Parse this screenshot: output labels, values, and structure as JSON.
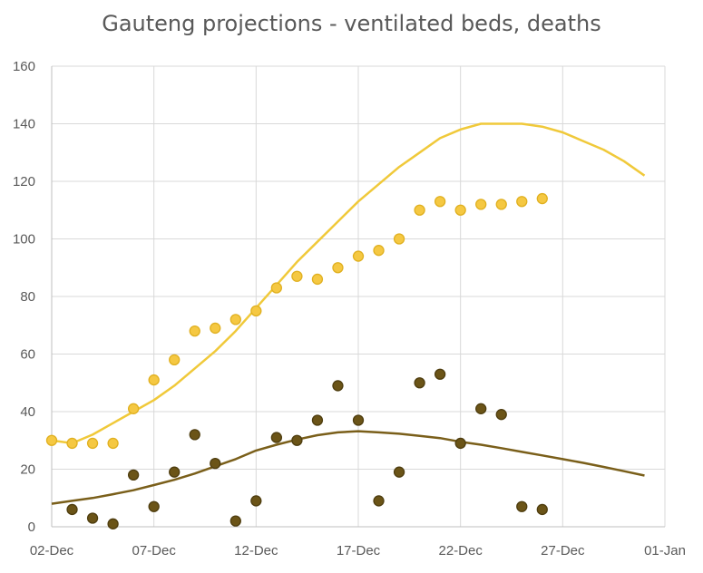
{
  "chart_data": {
    "type": "scatter",
    "title": "Gauteng projections - ventilated beds, deaths",
    "xlabel": "",
    "ylabel": "",
    "x_tick_labels": [
      "02-Dec",
      "07-Dec",
      "12-Dec",
      "17-Dec",
      "22-Dec",
      "27-Dec",
      "01-Jan"
    ],
    "xlim": [
      "2020-12-02",
      "2021-01-01"
    ],
    "ylim": [
      0,
      160
    ],
    "y_ticks": [
      0,
      20,
      40,
      60,
      80,
      100,
      120,
      140,
      160
    ],
    "grid": true,
    "legend": "none",
    "series": [
      {
        "kind": "points",
        "color": "#F5C842",
        "x": [
          "2020-12-02",
          "2020-12-03",
          "2020-12-04",
          "2020-12-05",
          "2020-12-06",
          "2020-12-07",
          "2020-12-08",
          "2020-12-09",
          "2020-12-10",
          "2020-12-11",
          "2020-12-12",
          "2020-12-13",
          "2020-12-14",
          "2020-12-15",
          "2020-12-16",
          "2020-12-17",
          "2020-12-18",
          "2020-12-19",
          "2020-12-20",
          "2020-12-21",
          "2020-12-22",
          "2020-12-23",
          "2020-12-24",
          "2020-12-25",
          "2020-12-26"
        ],
        "values": [
          30,
          29,
          29,
          29,
          41,
          51,
          58,
          68,
          69,
          72,
          75,
          83,
          87,
          86,
          90,
          94,
          96,
          100,
          110,
          113,
          110,
          112,
          112,
          113,
          114
        ]
      },
      {
        "kind": "line",
        "color": "#F0C93A",
        "x": [
          "2020-12-02",
          "2020-12-03",
          "2020-12-04",
          "2020-12-05",
          "2020-12-06",
          "2020-12-07",
          "2020-12-08",
          "2020-12-09",
          "2020-12-10",
          "2020-12-11",
          "2020-12-12",
          "2020-12-13",
          "2020-12-14",
          "2020-12-15",
          "2020-12-16",
          "2020-12-17",
          "2020-12-18",
          "2020-12-19",
          "2020-12-20",
          "2020-12-21",
          "2020-12-22",
          "2020-12-23",
          "2020-12-24",
          "2020-12-25",
          "2020-12-26",
          "2020-12-27",
          "2020-12-28",
          "2020-12-29",
          "2020-12-30",
          "2020-12-31"
        ],
        "values": [
          30,
          29,
          32,
          36,
          40,
          44,
          49,
          55,
          61,
          68,
          76,
          84,
          92,
          99,
          106,
          113,
          119,
          125,
          130,
          135,
          138,
          140,
          140,
          140,
          139,
          137,
          134,
          131,
          127,
          122
        ]
      },
      {
        "kind": "points",
        "color": "#6B5417",
        "x": [
          "2020-12-03",
          "2020-12-04",
          "2020-12-05",
          "2020-12-06",
          "2020-12-07",
          "2020-12-08",
          "2020-12-09",
          "2020-12-10",
          "2020-12-11",
          "2020-12-12",
          "2020-12-13",
          "2020-12-14",
          "2020-12-15",
          "2020-12-16",
          "2020-12-17",
          "2020-12-18",
          "2020-12-19",
          "2020-12-20",
          "2020-12-21",
          "2020-12-22",
          "2020-12-23",
          "2020-12-24",
          "2020-12-25",
          "2020-12-26"
        ],
        "values": [
          6,
          3,
          1,
          18,
          7,
          19,
          32,
          22,
          2,
          9,
          31,
          30,
          37,
          49,
          37,
          9,
          19,
          50,
          53,
          29,
          41,
          39,
          7,
          6
        ]
      },
      {
        "kind": "line",
        "color": "#7A5F1A",
        "x": [
          "2020-12-02",
          "2020-12-03",
          "2020-12-04",
          "2020-12-05",
          "2020-12-06",
          "2020-12-07",
          "2020-12-08",
          "2020-12-09",
          "2020-12-10",
          "2020-12-11",
          "2020-12-12",
          "2020-12-13",
          "2020-12-14",
          "2020-12-15",
          "2020-12-16",
          "2020-12-17",
          "2020-12-18",
          "2020-12-19",
          "2020-12-20",
          "2020-12-21",
          "2020-12-22",
          "2020-12-23",
          "2020-12-24",
          "2020-12-25",
          "2020-12-26",
          "2020-12-27",
          "2020-12-28",
          "2020-12-29",
          "2020-12-30",
          "2020-12-31"
        ],
        "values": [
          8,
          9,
          10,
          11.3,
          12.7,
          14.5,
          16.3,
          18.5,
          21,
          23.5,
          26.5,
          28.5,
          30.3,
          31.8,
          32.8,
          33.2,
          32.8,
          32.3,
          31.6,
          30.8,
          29.5,
          28.5,
          27.3,
          26,
          24.8,
          23.5,
          22.2,
          20.8,
          19.3,
          17.8
        ]
      }
    ]
  }
}
